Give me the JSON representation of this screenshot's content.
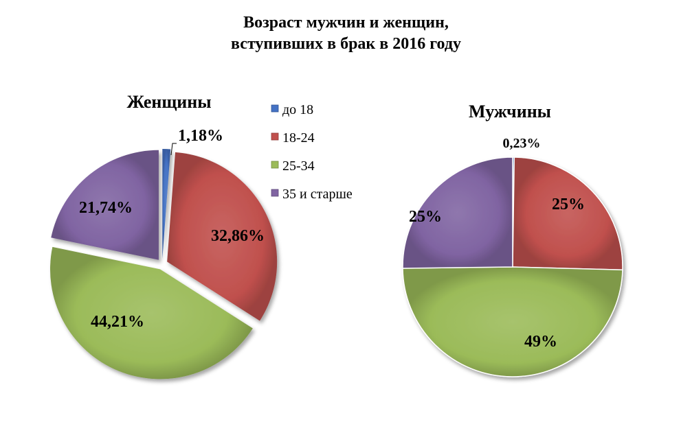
{
  "title_line1": "Возраст мужчин и женщин,",
  "title_line2": "вступивших в брак в 2016 году",
  "chart_data": [
    {
      "type": "pie",
      "title": "Женщины",
      "categories": [
        "до 18",
        "18-24",
        "25-34",
        "35 и старше"
      ],
      "values": [
        1.18,
        32.86,
        44.21,
        21.74
      ],
      "labels": [
        "1,18%",
        "32,86%",
        "44,21%",
        "21,74%"
      ],
      "colors": [
        "#4472C4",
        "#C0504D",
        "#9BBB59",
        "#8064A2"
      ],
      "exploded": true
    },
    {
      "type": "pie",
      "title": "Мужчины",
      "categories": [
        "до 18",
        "18-24",
        "25-34",
        "35 и старше"
      ],
      "values": [
        0.23,
        25,
        49,
        25
      ],
      "labels": [
        "0,23%",
        "25%",
        "49%",
        "25%"
      ],
      "colors": [
        "#4472C4",
        "#C0504D",
        "#9BBB59",
        "#8064A2"
      ],
      "exploded": false
    }
  ],
  "legend": {
    "position": "between",
    "items": [
      "до 18",
      "18-24",
      "25-34",
      "35 и старше"
    ],
    "colors": [
      "#4472C4",
      "#C0504D",
      "#9BBB59",
      "#8064A2"
    ]
  }
}
